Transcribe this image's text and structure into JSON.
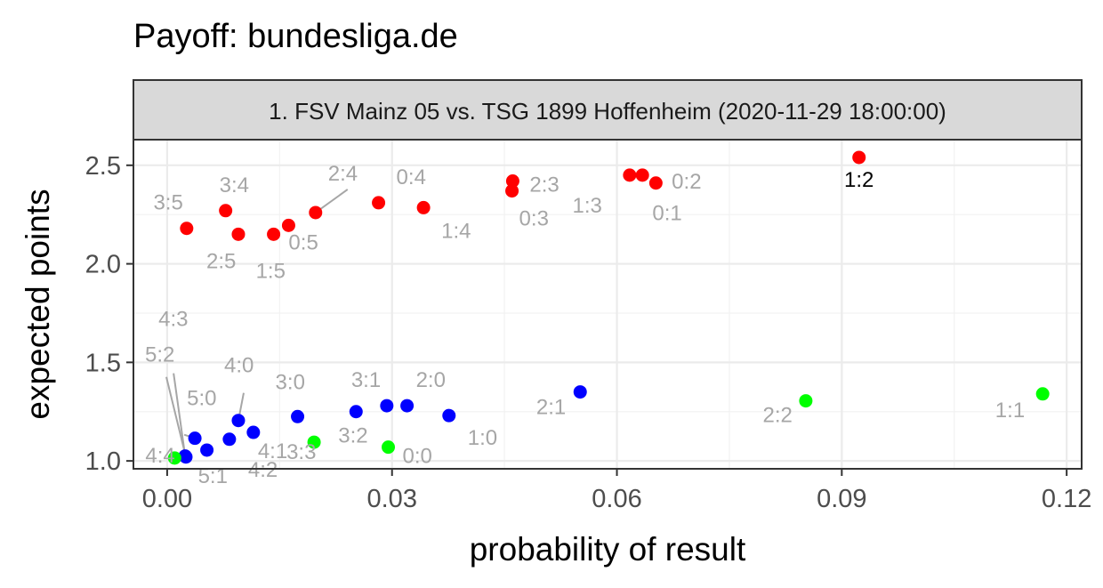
{
  "title": "Payoff: bundesliga.de",
  "chart_data": {
    "type": "scatter",
    "title": "Payoff: bundesliga.de",
    "facet_label": "1. FSV Mainz 05 vs. TSG 1899 Hoffenheim (2020-11-29 18:00:00)",
    "xlabel": "probability of result",
    "ylabel": "expected points",
    "xlim": [
      -0.0045,
      0.122
    ],
    "ylim": [
      0.96,
      2.63
    ],
    "x_ticks": [
      "0.00",
      "0.03",
      "0.06",
      "0.09",
      "0.12"
    ],
    "y_ticks": [
      "1.0",
      "1.5",
      "2.0",
      "2.5"
    ],
    "grid": true,
    "legend": "none",
    "colors": {
      "away_win": "#ff0000",
      "home_win": "#0000ff",
      "draw": "#00ff00",
      "highlight_label": "#000000",
      "label": "#a6a6a6"
    },
    "points": [
      {
        "label": "1:2",
        "x": 0.0923,
        "y": 2.54,
        "group": "away_win",
        "highlight": true
      },
      {
        "label": "0:2",
        "x": 0.0634,
        "y": 2.45,
        "group": "away_win"
      },
      {
        "label": "1:3",
        "x": 0.0617,
        "y": 2.45,
        "group": "away_win"
      },
      {
        "label": "0:1",
        "x": 0.0652,
        "y": 2.41,
        "group": "away_win"
      },
      {
        "label": "2:3",
        "x": 0.0461,
        "y": 2.42,
        "group": "away_win"
      },
      {
        "label": "0:3",
        "x": 0.046,
        "y": 2.37,
        "group": "away_win"
      },
      {
        "label": "0:4",
        "x": 0.0282,
        "y": 2.31,
        "group": "away_win"
      },
      {
        "label": "1:4",
        "x": 0.0342,
        "y": 2.285,
        "group": "away_win"
      },
      {
        "label": "2:4",
        "x": 0.0198,
        "y": 2.26,
        "group": "away_win"
      },
      {
        "label": "0:5",
        "x": 0.0162,
        "y": 2.195,
        "group": "away_win"
      },
      {
        "label": "3:4",
        "x": 0.0078,
        "y": 2.27,
        "group": "away_win"
      },
      {
        "label": "3:5",
        "x": 0.0026,
        "y": 2.18,
        "group": "away_win"
      },
      {
        "label": "2:5",
        "x": 0.0095,
        "y": 2.15,
        "group": "away_win"
      },
      {
        "label": "1:5",
        "x": 0.0142,
        "y": 2.15,
        "group": "away_win"
      },
      {
        "label": "2:1",
        "x": 0.0551,
        "y": 1.35,
        "group": "home_win"
      },
      {
        "label": "1:0",
        "x": 0.0376,
        "y": 1.23,
        "group": "home_win"
      },
      {
        "label": "2:0",
        "x": 0.032,
        "y": 1.28,
        "group": "home_win"
      },
      {
        "label": "3:1",
        "x": 0.0293,
        "y": 1.28,
        "group": "home_win"
      },
      {
        "label": "3:2",
        "x": 0.0252,
        "y": 1.25,
        "group": "home_win"
      },
      {
        "label": "3:0",
        "x": 0.0174,
        "y": 1.225,
        "group": "home_win"
      },
      {
        "label": "4:1",
        "x": 0.0115,
        "y": 1.145,
        "group": "home_win"
      },
      {
        "label": "4:0",
        "x": 0.0095,
        "y": 1.205,
        "group": "home_win"
      },
      {
        "label": "4:2",
        "x": 0.0083,
        "y": 1.11,
        "group": "home_win"
      },
      {
        "label": "5:0",
        "x": 0.0037,
        "y": 1.115,
        "group": "home_win"
      },
      {
        "label": "5:1",
        "x": 0.0053,
        "y": 1.055,
        "group": "home_win"
      },
      {
        "label": "4:3",
        "x": 0.0024,
        "y": 1.025,
        "group": "home_win"
      },
      {
        "label": "5:2",
        "x": 0.0025,
        "y": 1.02,
        "group": "home_win"
      },
      {
        "label": "1:1",
        "x": 0.1168,
        "y": 1.34,
        "group": "draw"
      },
      {
        "label": "2:2",
        "x": 0.0852,
        "y": 1.305,
        "group": "draw"
      },
      {
        "label": "0:0",
        "x": 0.0295,
        "y": 1.07,
        "group": "draw"
      },
      {
        "label": "3:3",
        "x": 0.0196,
        "y": 1.095,
        "group": "draw"
      },
      {
        "label": "4:4",
        "x": 0.001,
        "y": 1.015,
        "group": "draw"
      }
    ]
  }
}
